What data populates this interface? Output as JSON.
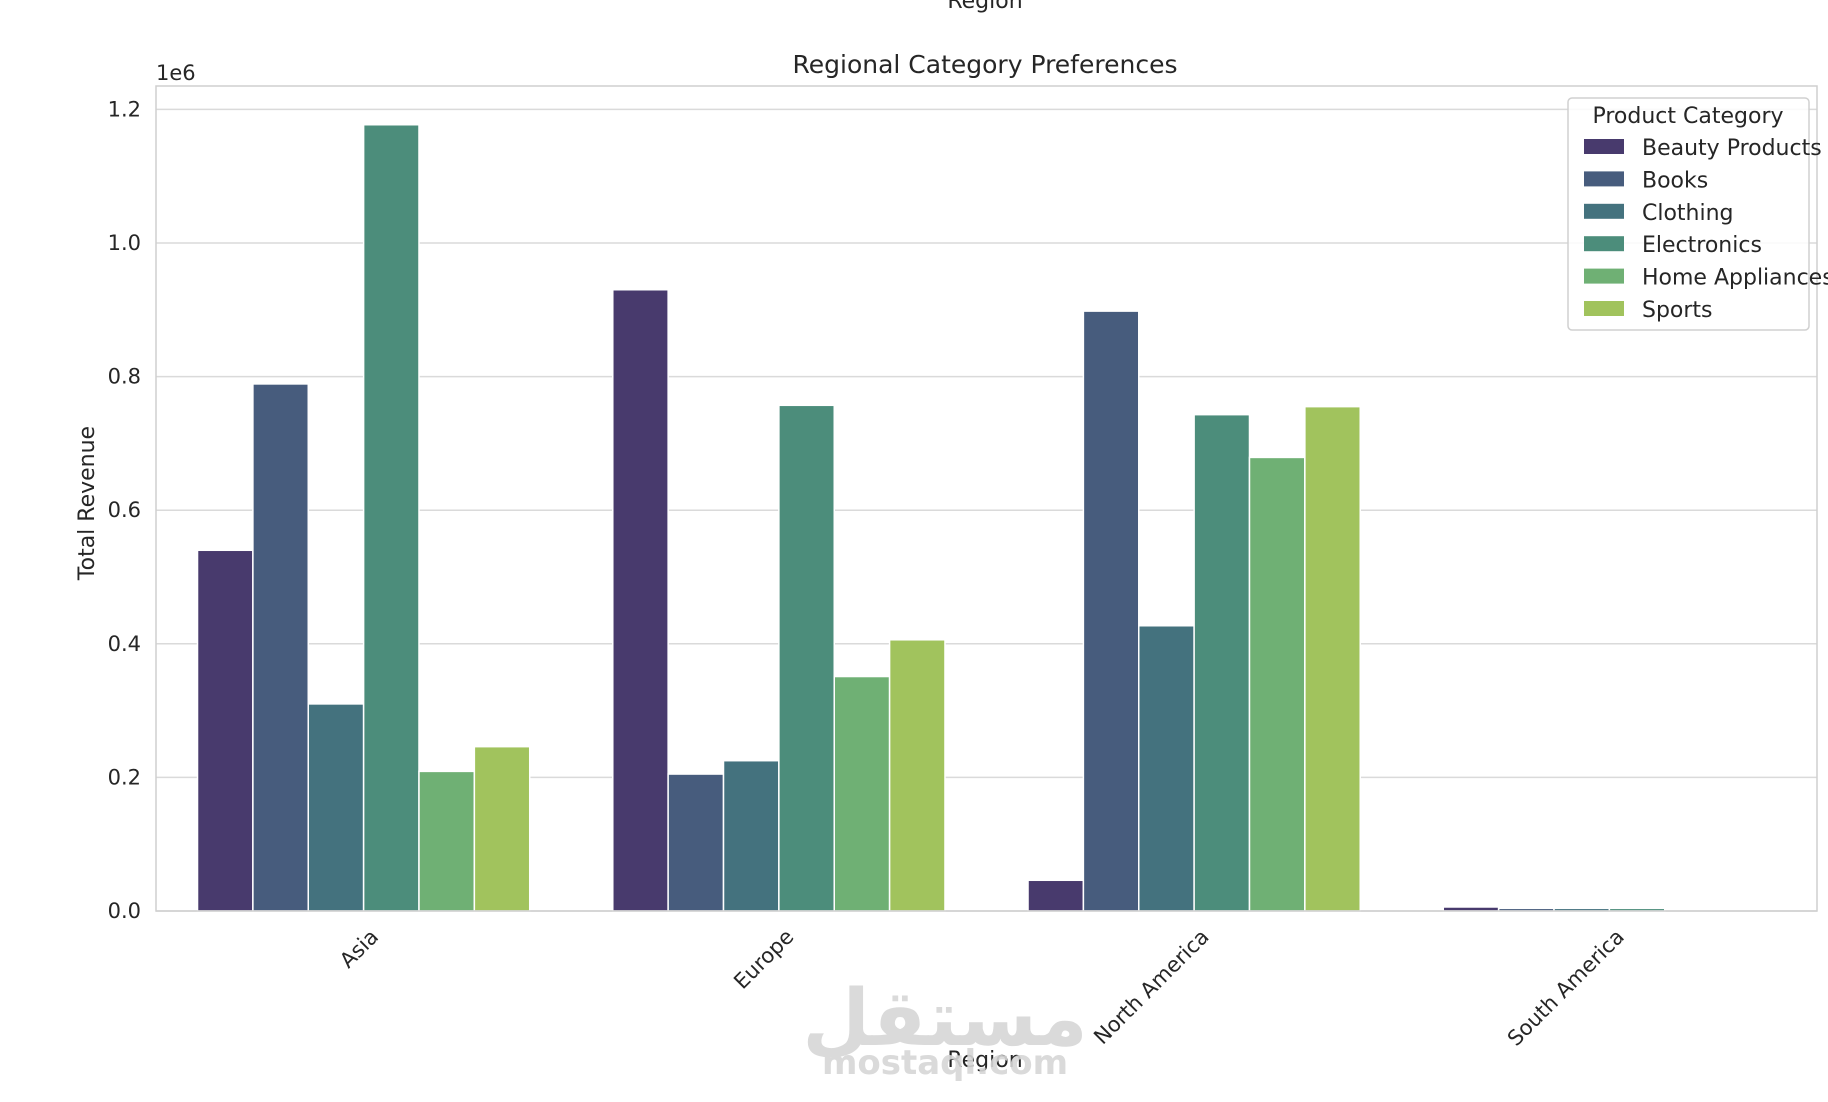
{
  "top_clip_text": "Region",
  "watermark": {
    "arabic": "مستقل",
    "latin": "mostaql.com"
  },
  "chart_data": {
    "type": "bar",
    "title": "Regional Category Preferences",
    "xlabel": "Region",
    "ylabel": "Total Revenue",
    "y_offset_text": "1e6",
    "ylim": [
      0,
      1.235
    ],
    "y_ticks": [
      "0.0",
      "0.2",
      "0.4",
      "0.6",
      "0.8",
      "1.0",
      "1.2"
    ],
    "y_tick_values": [
      0,
      0.2,
      0.4,
      0.6,
      0.8,
      1.0,
      1.2
    ],
    "grid": true,
    "legend_title": "Product Category",
    "legend_position": "upper right",
    "categories": [
      "Asia",
      "Europe",
      "North America",
      "South America"
    ],
    "series": [
      {
        "name": "Beauty Products",
        "color": "#483a6d",
        "values": [
          0.54,
          0.93,
          0.046,
          0.006
        ]
      },
      {
        "name": "Books",
        "color": "#475c7d",
        "values": [
          0.789,
          0.205,
          0.898,
          0.004
        ]
      },
      {
        "name": "Clothing",
        "color": "#44727e",
        "values": [
          0.31,
          0.225,
          0.427,
          0.004
        ]
      },
      {
        "name": "Electronics",
        "color": "#4c8d7b",
        "values": [
          1.177,
          0.757,
          0.743,
          0.004
        ]
      },
      {
        "name": "Home Appliances",
        "color": "#6fb074",
        "values": [
          0.209,
          0.351,
          0.679,
          0.0
        ]
      },
      {
        "name": "Sports",
        "color": "#a1c35d",
        "values": [
          0.246,
          0.406,
          0.755,
          0.0
        ]
      }
    ]
  }
}
